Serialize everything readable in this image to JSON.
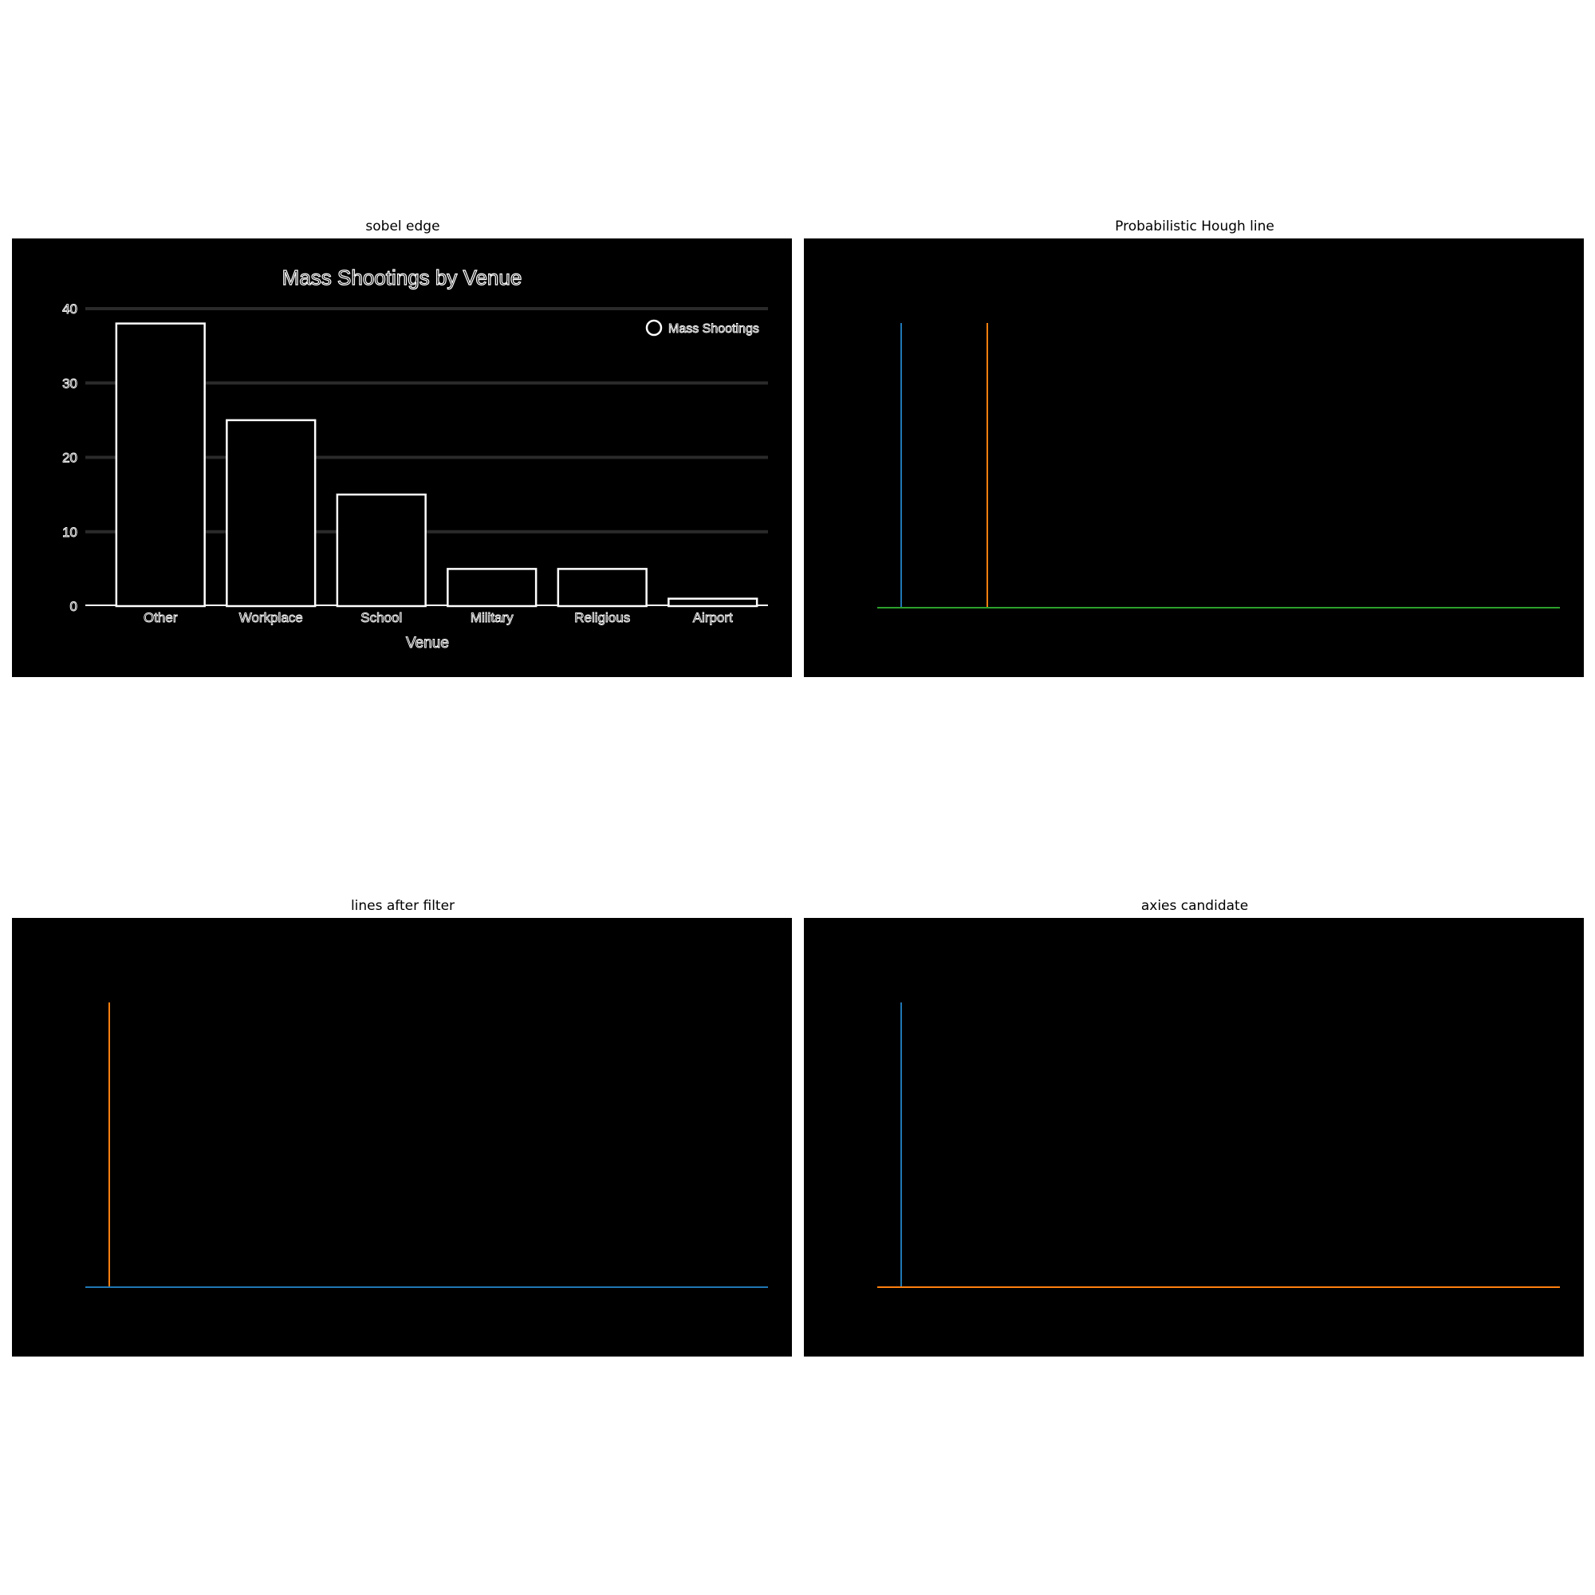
{
  "panels": {
    "sobel": {
      "title": "sobel edge"
    },
    "hough": {
      "title": "Probabilistic Hough line"
    },
    "filtered": {
      "title": "lines after filter"
    },
    "axes": {
      "title": "axies candidate"
    }
  },
  "colors": {
    "blue": "#1f77b4",
    "orange": "#ff7f0e",
    "green": "#2ca02c",
    "edge": "#ffffff",
    "grid": "#2a2a2a"
  },
  "chart_data": {
    "type": "bar",
    "title": "Mass Shootings by Venue",
    "xlabel": "Venue",
    "ylabel": "",
    "categories": [
      "Other",
      "Workplace",
      "School",
      "Military",
      "Religious",
      "Airport"
    ],
    "series": [
      {
        "name": "Mass Shootings",
        "values": [
          38,
          25,
          15,
          5,
          5,
          1
        ]
      }
    ],
    "yticks": [
      "0",
      "10",
      "20",
      "30",
      "40"
    ],
    "ylim": [
      0,
      40
    ],
    "grid": true,
    "legend_position": "top-right"
  }
}
